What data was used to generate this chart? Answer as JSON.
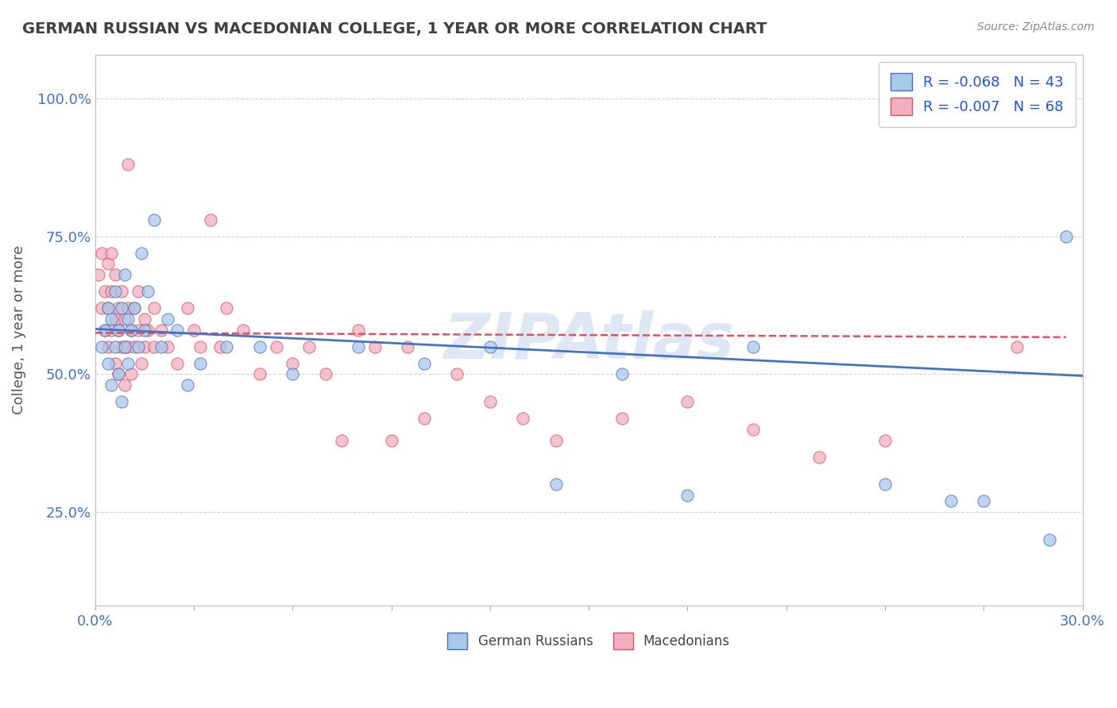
{
  "title": "GERMAN RUSSIAN VS MACEDONIAN COLLEGE, 1 YEAR OR MORE CORRELATION CHART",
  "source_text": "Source: ZipAtlas.com",
  "ylabel": "College, 1 year or more",
  "xlim": [
    0.0,
    0.3
  ],
  "ylim": [
    0.08,
    1.08
  ],
  "ytick_labels": [
    "25.0%",
    "50.0%",
    "75.0%",
    "100.0%"
  ],
  "ytick_values": [
    0.25,
    0.5,
    0.75,
    1.0
  ],
  "blue_color": "#4472c4",
  "pink_color": "#e05060",
  "blue_scatter_color": "#a8c8e8",
  "pink_scatter_color": "#f0b0c0",
  "title_color": "#404040",
  "axis_label_color": "#4472c4",
  "watermark_color": "#c8d8e8",
  "blue_points_x": [
    0.002,
    0.003,
    0.004,
    0.004,
    0.005,
    0.005,
    0.006,
    0.006,
    0.007,
    0.007,
    0.008,
    0.008,
    0.009,
    0.009,
    0.01,
    0.01,
    0.011,
    0.012,
    0.013,
    0.014,
    0.015,
    0.016,
    0.018,
    0.02,
    0.022,
    0.025,
    0.028,
    0.032,
    0.04,
    0.05,
    0.06,
    0.08,
    0.1,
    0.12,
    0.14,
    0.16,
    0.18,
    0.2,
    0.24,
    0.26,
    0.27,
    0.29,
    0.295
  ],
  "blue_points_y": [
    0.55,
    0.58,
    0.62,
    0.52,
    0.6,
    0.48,
    0.65,
    0.55,
    0.58,
    0.5,
    0.62,
    0.45,
    0.55,
    0.68,
    0.52,
    0.6,
    0.58,
    0.62,
    0.55,
    0.72,
    0.58,
    0.65,
    0.78,
    0.55,
    0.6,
    0.58,
    0.48,
    0.52,
    0.55,
    0.55,
    0.5,
    0.55,
    0.52,
    0.55,
    0.3,
    0.5,
    0.28,
    0.55,
    0.3,
    0.27,
    0.27,
    0.2,
    0.75
  ],
  "pink_points_x": [
    0.001,
    0.002,
    0.002,
    0.003,
    0.003,
    0.004,
    0.004,
    0.004,
    0.005,
    0.005,
    0.005,
    0.006,
    0.006,
    0.006,
    0.007,
    0.007,
    0.007,
    0.008,
    0.008,
    0.009,
    0.009,
    0.009,
    0.01,
    0.01,
    0.01,
    0.011,
    0.011,
    0.012,
    0.012,
    0.013,
    0.013,
    0.014,
    0.015,
    0.015,
    0.016,
    0.018,
    0.018,
    0.02,
    0.022,
    0.025,
    0.028,
    0.03,
    0.032,
    0.035,
    0.038,
    0.04,
    0.045,
    0.05,
    0.055,
    0.06,
    0.065,
    0.07,
    0.075,
    0.08,
    0.085,
    0.09,
    0.095,
    0.1,
    0.11,
    0.12,
    0.13,
    0.14,
    0.16,
    0.18,
    0.2,
    0.22,
    0.24,
    0.28
  ],
  "pink_points_y": [
    0.68,
    0.72,
    0.62,
    0.65,
    0.58,
    0.7,
    0.62,
    0.55,
    0.72,
    0.65,
    0.58,
    0.68,
    0.6,
    0.52,
    0.62,
    0.58,
    0.5,
    0.65,
    0.55,
    0.6,
    0.55,
    0.48,
    0.62,
    0.55,
    0.88,
    0.58,
    0.5,
    0.62,
    0.55,
    0.65,
    0.58,
    0.52,
    0.6,
    0.55,
    0.58,
    0.62,
    0.55,
    0.58,
    0.55,
    0.52,
    0.62,
    0.58,
    0.55,
    0.78,
    0.55,
    0.62,
    0.58,
    0.5,
    0.55,
    0.52,
    0.55,
    0.5,
    0.38,
    0.58,
    0.55,
    0.38,
    0.55,
    0.42,
    0.5,
    0.45,
    0.42,
    0.38,
    0.42,
    0.45,
    0.4,
    0.35,
    0.38,
    0.55
  ],
  "blue_trend_x": [
    0.0,
    0.3
  ],
  "blue_trend_y": [
    0.582,
    0.497
  ],
  "pink_trend_x": [
    0.0,
    0.295
  ],
  "pink_trend_y": [
    0.575,
    0.567
  ]
}
